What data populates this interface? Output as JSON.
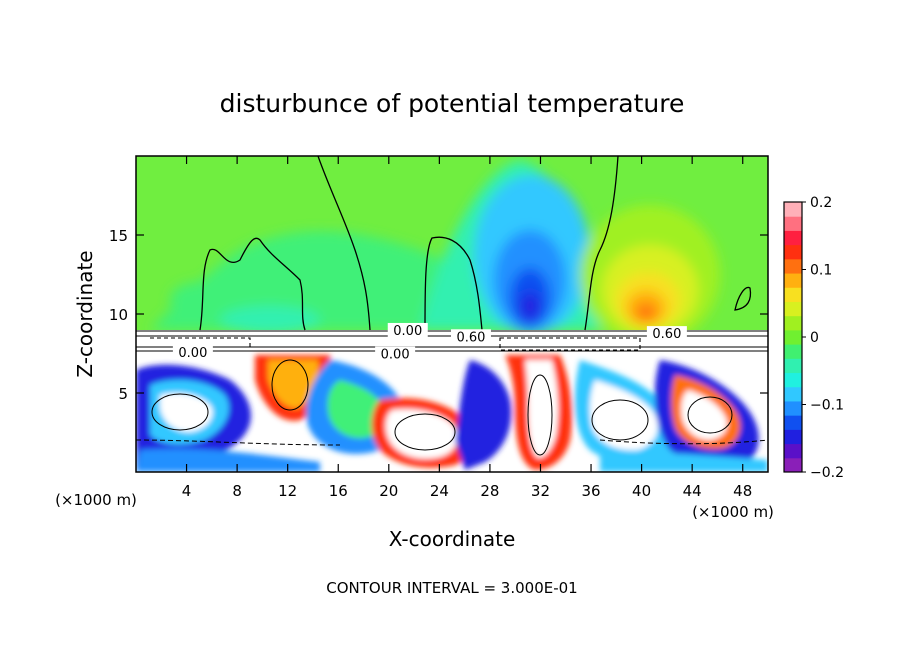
{
  "chart_data": {
    "type": "heatmap",
    "title": "disturbunce of potential temperature",
    "xlabel": "X-coordinate",
    "ylabel": "Z-coordinate",
    "x_unit_left": "(×1000 m)",
    "x_unit_right": "(×1000 m)",
    "footer": "CONTOUR INTERVAL = 3.000E-01",
    "xlim": [
      0,
      50
    ],
    "ylim": [
      0,
      20
    ],
    "x_ticks": [
      {
        "value": 4,
        "label": "4"
      },
      {
        "value": 8,
        "label": "8"
      },
      {
        "value": 12,
        "label": "12"
      },
      {
        "value": 16,
        "label": "16"
      },
      {
        "value": 20,
        "label": "20"
      },
      {
        "value": 24,
        "label": "24"
      },
      {
        "value": 28,
        "label": "28"
      },
      {
        "value": 32,
        "label": "32"
      },
      {
        "value": 36,
        "label": "36"
      },
      {
        "value": 40,
        "label": "40"
      },
      {
        "value": 44,
        "label": "44"
      },
      {
        "value": 48,
        "label": "48"
      }
    ],
    "y_ticks": [
      {
        "value": 5,
        "label": "5"
      },
      {
        "value": 10,
        "label": "10"
      },
      {
        "value": 15,
        "label": "15"
      }
    ],
    "colorbar": {
      "min": -0.2,
      "max": 0.2,
      "ticks": [
        {
          "value": 0.2,
          "label": "0.2"
        },
        {
          "value": 0.1,
          "label": "0.1"
        },
        {
          "value": 0,
          "label": "0"
        },
        {
          "value": -0.1,
          "label": "−0.1"
        },
        {
          "value": -0.2,
          "label": "−0.2"
        }
      ],
      "colors": [
        "#8a1fb8",
        "#5a10c8",
        "#2020e0",
        "#1050f0",
        "#2090ff",
        "#30c8ff",
        "#20f0e0",
        "#30f0b0",
        "#40f070",
        "#70f030",
        "#a0f020",
        "#d8f020",
        "#f8e020",
        "#ffb010",
        "#ff7010",
        "#ff3010",
        "#ff2040",
        "#ff7080",
        "#ffb0b8"
      ]
    },
    "contour_labels": [
      {
        "x": 4.5,
        "y": 7.4,
        "label": "0.00"
      },
      {
        "x": 20.5,
        "y": 7.3,
        "label": "0.00"
      },
      {
        "x": 21.5,
        "y": 8.8,
        "label": "0.00"
      },
      {
        "x": 26.5,
        "y": 8.4,
        "label": "0.60"
      },
      {
        "x": 42.0,
        "y": 8.6,
        "label": "0.60"
      }
    ],
    "field": {
      "upper_layer": "z > 9: smooth near-zero field; warm anomaly (up to +0.12) centered x≈40, z≈10; cool anomaly (down to −0.2) centered x≈31, z≈11",
      "lower_layer": "z < 8: strong alternating positive/negative structures, saturated beyond colorbar range",
      "discontinuity": "white band at z≈8–9 across full width"
    }
  }
}
